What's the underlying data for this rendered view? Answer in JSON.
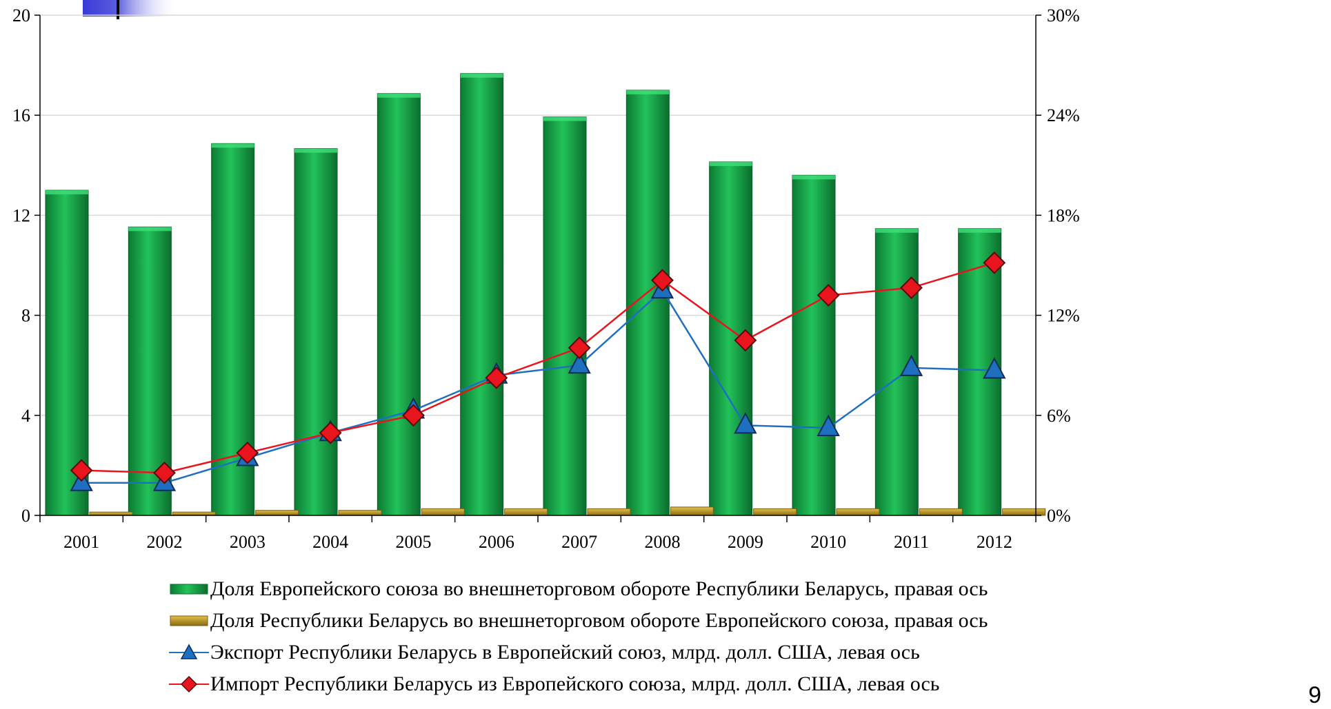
{
  "chart_data": {
    "type": "bar",
    "categories": [
      "2001",
      "2002",
      "2003",
      "2004",
      "2005",
      "2006",
      "2007",
      "2008",
      "2009",
      "2010",
      "2011",
      "2012"
    ],
    "left_axis": {
      "ylim": [
        0,
        20
      ],
      "ticks": [
        "0",
        "4",
        "8",
        "12",
        "16",
        "20"
      ]
    },
    "right_axis": {
      "ylim": [
        0,
        30
      ],
      "ticks": [
        "0%",
        "6%",
        "12%",
        "18%",
        "24%",
        "30%"
      ]
    },
    "series": [
      {
        "name": "Доля Европейского союза во внешнеторговом обороте Республики Беларусь, правая ось",
        "kind": "bar",
        "axis": "right",
        "color": "#1aa84a",
        "values": [
          19.5,
          17.3,
          22.3,
          22.0,
          25.3,
          26.5,
          23.9,
          25.5,
          21.2,
          20.4,
          17.2,
          17.2
        ]
      },
      {
        "name": "Доля Республики Беларусь во внешнеторговом обороте Европейского союза, правая ось",
        "kind": "bar",
        "axis": "right",
        "color": "#c9a227",
        "values": [
          0.2,
          0.2,
          0.3,
          0.3,
          0.4,
          0.4,
          0.4,
          0.5,
          0.4,
          0.4,
          0.4,
          0.4
        ]
      },
      {
        "name": "Экспорт Республики Беларусь в Европейский союз, млрд. долл. США, левая ось",
        "kind": "line",
        "axis": "left",
        "color": "#1f6fc0",
        "marker": "triangle",
        "values": [
          1.3,
          1.3,
          2.3,
          3.3,
          4.2,
          5.6,
          6.0,
          9.0,
          3.6,
          3.5,
          5.9,
          5.8
        ]
      },
      {
        "name": "Импорт Республики Беларусь из Европейского союза, млрд. долл. США, левая ось",
        "kind": "line",
        "axis": "left",
        "color": "#e8141e",
        "marker": "diamond",
        "values": [
          1.8,
          1.7,
          2.5,
          3.3,
          4.0,
          5.5,
          6.7,
          9.4,
          7.0,
          8.8,
          9.1,
          10.1
        ]
      }
    ]
  },
  "page_number": "9",
  "colors": {
    "logo_blue": "#3a3bd6",
    "grid": "#d9d9d9",
    "axis": "#000000"
  }
}
